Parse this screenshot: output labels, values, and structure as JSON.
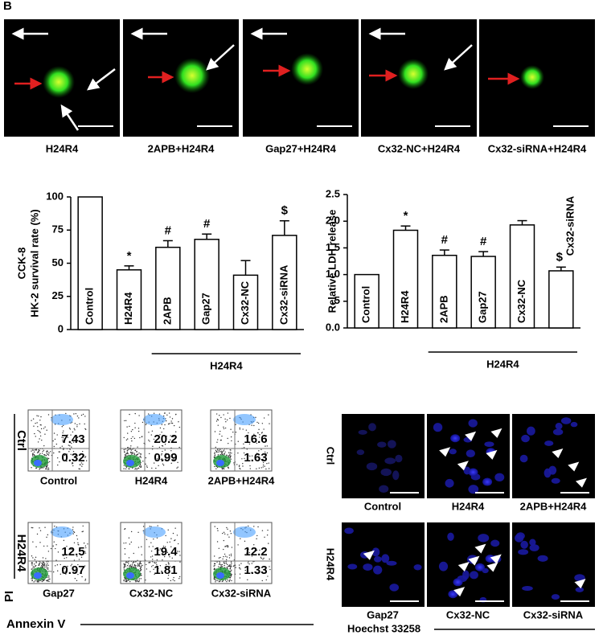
{
  "panel_label": "B",
  "fluorescence": {
    "labels": [
      "H24R4",
      "2APB+H24R4",
      "Gap27+H24R4",
      "Cx32-NC+H24R4",
      "Cx32-siRNA+H24R4"
    ]
  },
  "chart_data": [
    {
      "type": "bar",
      "ylabel": [
        "CCK-8",
        "HK-2 survival rate  (%)"
      ],
      "categories": [
        "Control",
        "H24R4",
        "2APB",
        "Gap27",
        "Cx32-NC",
        "Cx32-siRNA"
      ],
      "values": [
        100,
        45,
        62,
        68,
        41,
        71
      ],
      "errors": [
        0,
        3,
        5,
        4,
        11,
        11
      ],
      "annotations": [
        null,
        "*",
        "#",
        "#",
        null,
        "$"
      ],
      "group_label": "H24R4",
      "ylim": [
        0,
        100
      ],
      "yticks": [
        0,
        25,
        50,
        75,
        100
      ],
      "color": "#ffffff"
    },
    {
      "type": "bar",
      "ylabel": [
        "Relative LDH release"
      ],
      "categories": [
        "Control",
        "H24R4",
        "2APB",
        "Gap27",
        "Cx32-NC",
        "Cx32-siRNA"
      ],
      "values": [
        1.0,
        1.83,
        1.36,
        1.34,
        1.93,
        1.07
      ],
      "errors": [
        0,
        0.08,
        0.1,
        0.09,
        0.08,
        0.07
      ],
      "annotations": [
        null,
        "*",
        "#",
        "#",
        null,
        "$"
      ],
      "group_label": "H24R4",
      "ylim": [
        0,
        2.5
      ],
      "yticks": [
        {
          "value": 0,
          "label": "0.0"
        },
        {
          "value": 0.5,
          "label": ".5"
        },
        {
          "value": 1,
          "label": "1.0"
        },
        {
          "value": 1.5,
          "label": "1.5"
        },
        {
          "value": 2,
          "label": "2.0"
        },
        {
          "value": 2.5,
          "label": "2.5"
        }
      ],
      "color": "#ffffff"
    }
  ],
  "flow": {
    "row_labels": [
      "Ctrl",
      "H24R4"
    ],
    "x_axis": "Annexin V",
    "y_axis": "PI",
    "plots": [
      {
        "label": "Control",
        "upper": "7.43",
        "lower": "0.32"
      },
      {
        "label": "H24R4",
        "upper": "20.2",
        "lower": "0.99"
      },
      {
        "label": "2APB+H24R4",
        "upper": "16.6",
        "lower": "1.63"
      },
      {
        "label": "Gap27",
        "upper": "12.5",
        "lower": "0.97"
      },
      {
        "label": "Cx32-NC",
        "upper": "19.4",
        "lower": "1.81"
      },
      {
        "label": "Cx32-siRNA",
        "upper": "12.2",
        "lower": "1.33"
      }
    ]
  },
  "hoechst": {
    "row_labels": [
      "Ctrl",
      "H24R4"
    ],
    "stain": "Hoechst 33258",
    "labels": [
      "Control",
      "H24R4",
      "2APB+H24R4",
      "Gap27",
      "Cx32-NC",
      "Cx32-siRNA"
    ]
  }
}
